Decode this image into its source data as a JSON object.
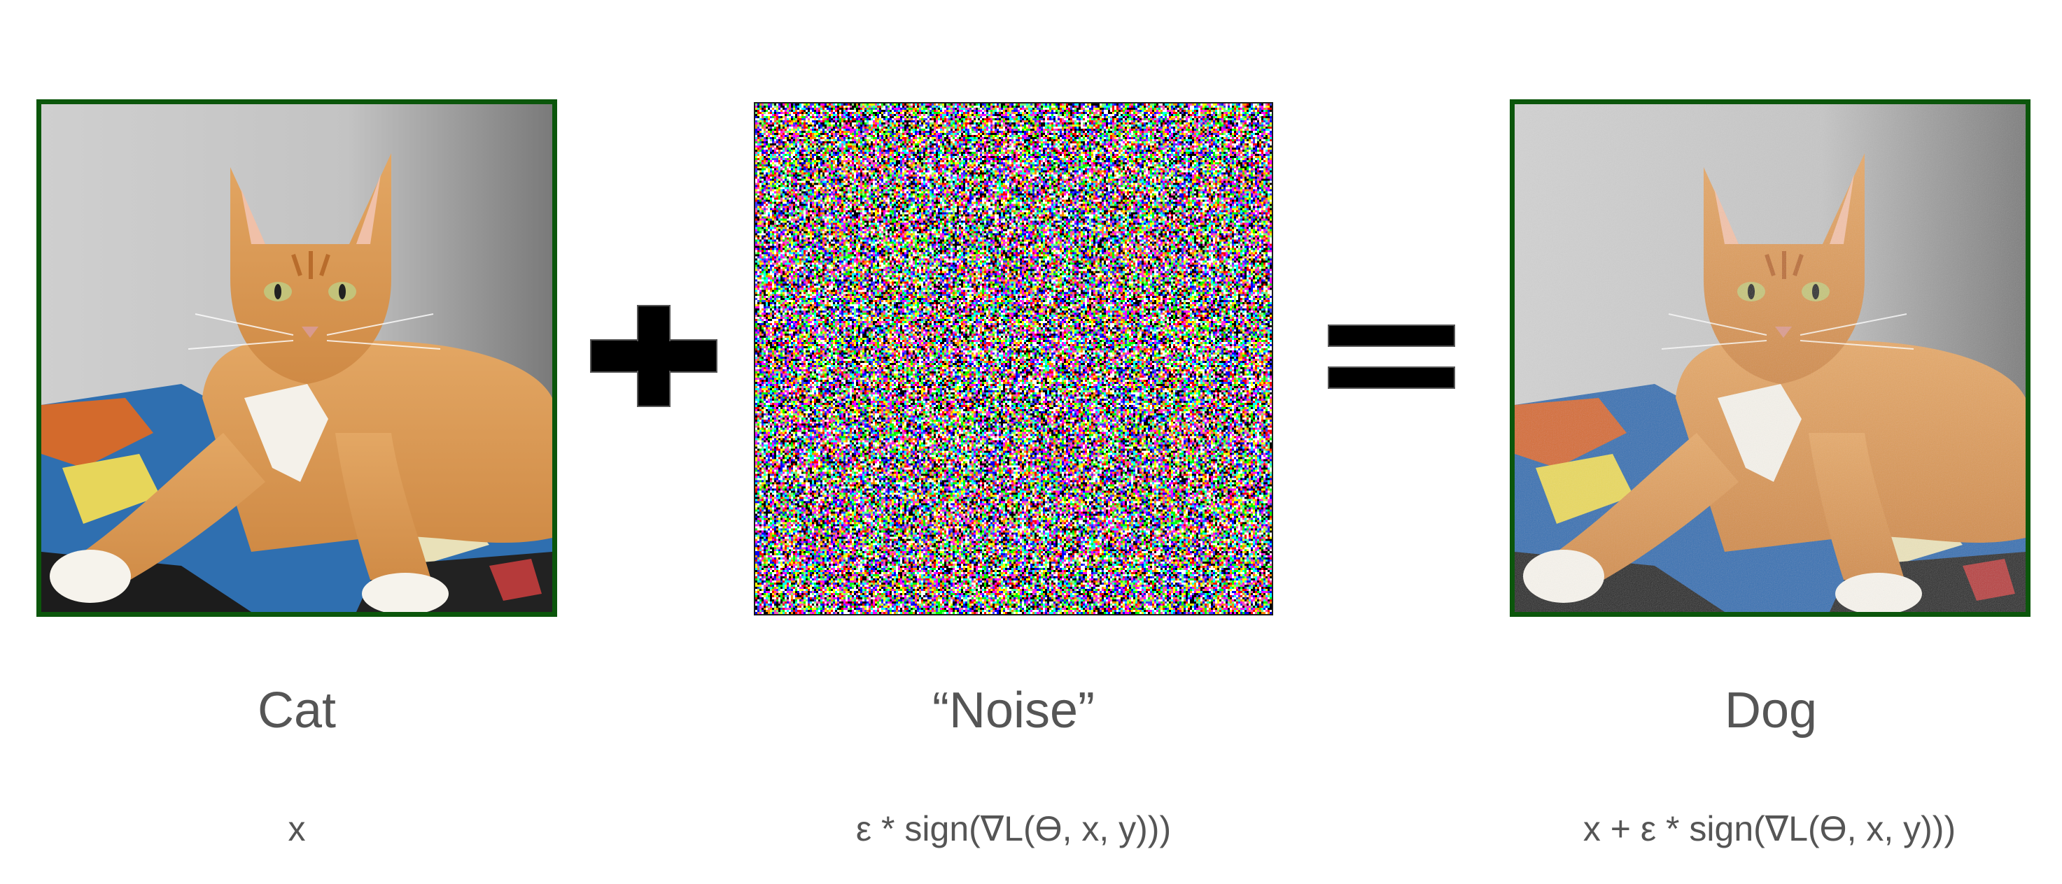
{
  "panels": [
    {
      "id": "cat",
      "image": "orange-tabby-cat-photo",
      "caption": "Cat",
      "formula": "x",
      "frame_color": "#0b560b"
    },
    {
      "id": "noise",
      "image": "random-color-noise",
      "caption": "“Noise”",
      "formula": "ε * sign(∇L(ϴ, x, y)))"
    },
    {
      "id": "dog",
      "image": "orange-tabby-cat-photo-perturbed",
      "caption": "Dog",
      "formula": "x + ε * sign(∇L(ϴ, x, y)))",
      "frame_color": "#0b560b"
    }
  ],
  "operators": {
    "plus": "plus-sign",
    "equals": "equals-sign"
  },
  "colors": {
    "text": "#555555",
    "frame": "#0b560b",
    "operator": "#000000"
  }
}
